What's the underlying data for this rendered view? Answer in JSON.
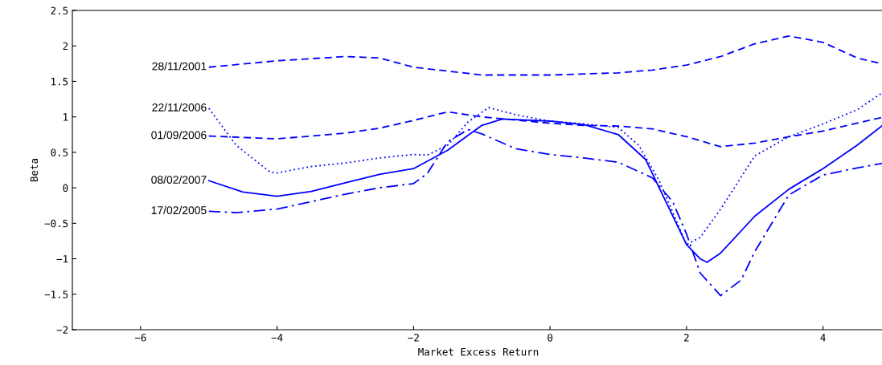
{
  "chart_data": {
    "type": "line",
    "xlabel": "Market Excess Return",
    "ylabel": "Beta",
    "xlim": [
      -7,
      4.9
    ],
    "xticks": [
      {
        "value": -6,
        "label": "−6"
      },
      {
        "value": -4,
        "label": "−4"
      },
      {
        "value": -2,
        "label": "−2"
      },
      0,
      2,
      4
    ],
    "ylim": [
      -2,
      2.5
    ],
    "yticks": [
      {
        "value": -2,
        "label": "−2"
      },
      {
        "value": -1.5,
        "label": "−1.5"
      },
      {
        "value": -1,
        "label": "−1"
      },
      {
        "value": -0.5,
        "label": "−0.5"
      },
      0,
      0.5,
      1,
      1.5,
      2,
      2.5
    ],
    "grid": false,
    "legend": false,
    "series": [
      {
        "name": "28/11/2001",
        "color": "#0000ff",
        "line_style": "dashed",
        "x": [
          -5,
          -4,
          -3,
          -2.5,
          -2,
          -1,
          0,
          1,
          1.5,
          2,
          2.5,
          3,
          3.5,
          4,
          4.5,
          4.9
        ],
        "values": [
          1.7,
          1.79,
          1.85,
          1.83,
          1.7,
          1.59,
          1.59,
          1.62,
          1.66,
          1.73,
          1.85,
          2.03,
          2.14,
          2.05,
          1.83,
          1.74
        ]
      },
      {
        "name": "22/11/2006",
        "color": "#0000ff",
        "line_style": "dotted",
        "x": [
          -5,
          -4.6,
          -4.1,
          -4,
          -3.5,
          -3,
          -2.5,
          -2,
          -1.8,
          -1.5,
          -1.2,
          -0.9,
          -0.5,
          0,
          0.5,
          1,
          1.3,
          1.6,
          2,
          2.2,
          2.5,
          3,
          3.5,
          4,
          4.5,
          4.9
        ],
        "values": [
          1.12,
          0.6,
          0.22,
          0.21,
          0.3,
          0.35,
          0.42,
          0.47,
          0.46,
          0.6,
          0.93,
          1.13,
          1.03,
          0.94,
          0.9,
          0.85,
          0.6,
          0.1,
          -0.8,
          -0.7,
          -0.3,
          0.45,
          0.72,
          0.9,
          1.1,
          1.36
        ]
      },
      {
        "name": "01/09/2006",
        "color": "#0000ff",
        "line_style": "dashed",
        "x": [
          -5,
          -4,
          -3,
          -2.5,
          -2,
          -1.5,
          -1,
          0,
          0.5,
          1,
          1.5,
          2,
          2.5,
          3,
          3.5,
          4,
          4.9
        ],
        "values": [
          0.73,
          0.69,
          0.77,
          0.84,
          0.95,
          1.07,
          1.0,
          0.91,
          0.88,
          0.87,
          0.83,
          0.72,
          0.58,
          0.63,
          0.72,
          0.8,
          1.0
        ]
      },
      {
        "name": "08/02/2007",
        "color": "#0000ff",
        "line_style": "solid",
        "x": [
          -5,
          -4.5,
          -4,
          -3.5,
          -3,
          -2.5,
          -2,
          -1.5,
          -1,
          -0.7,
          0,
          0.5,
          1,
          1.4,
          1.7,
          2,
          2.2,
          2.3,
          2.5,
          3,
          3.5,
          4,
          4.5,
          4.9
        ],
        "values": [
          0.1,
          -0.06,
          -0.12,
          -0.05,
          0.07,
          0.19,
          0.27,
          0.53,
          0.88,
          0.97,
          0.94,
          0.89,
          0.75,
          0.4,
          -0.2,
          -0.8,
          -1.0,
          -1.05,
          -0.92,
          -0.4,
          -0.02,
          0.27,
          0.6,
          0.9
        ]
      },
      {
        "name": "17/02/2005",
        "color": "#0000ff",
        "line_style": "dashdot",
        "x": [
          -5,
          -4.6,
          -4,
          -3,
          -2.5,
          -2,
          -1.8,
          -1.5,
          -1.2,
          -1,
          -0.5,
          0,
          0.5,
          1,
          1.5,
          1.8,
          2,
          2.2,
          2.5,
          2.8,
          3,
          3.5,
          4,
          4.5,
          4.9
        ],
        "values": [
          -0.33,
          -0.35,
          -0.3,
          -0.09,
          0,
          0.06,
          0.2,
          0.65,
          0.82,
          0.76,
          0.55,
          0.47,
          0.42,
          0.36,
          0.14,
          -0.2,
          -0.65,
          -1.2,
          -1.52,
          -1.3,
          -0.9,
          -0.1,
          0.18,
          0.28,
          0.35
        ]
      }
    ]
  }
}
